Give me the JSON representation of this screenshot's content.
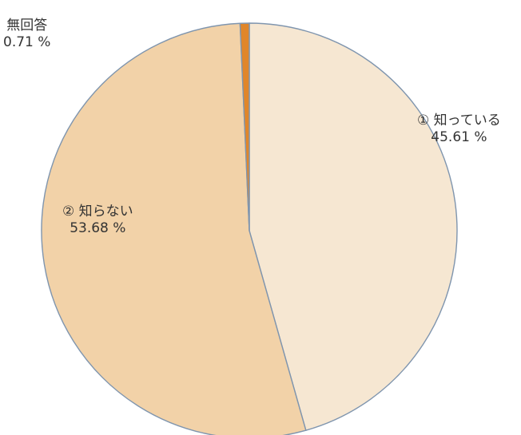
{
  "chart_data": {
    "type": "pie",
    "slices": [
      {
        "label": "① 知っている",
        "value": 45.61,
        "value_text": "45.61 %",
        "color": "#f6e7d2"
      },
      {
        "label": "② 知らない",
        "value": 53.68,
        "value_text": "53.68 %",
        "color": "#f2d2a8"
      },
      {
        "label": "無回答",
        "value": 0.71,
        "value_text": "0.71 %",
        "color": "#e0862a"
      }
    ],
    "outline_color": "#7f95ae"
  }
}
